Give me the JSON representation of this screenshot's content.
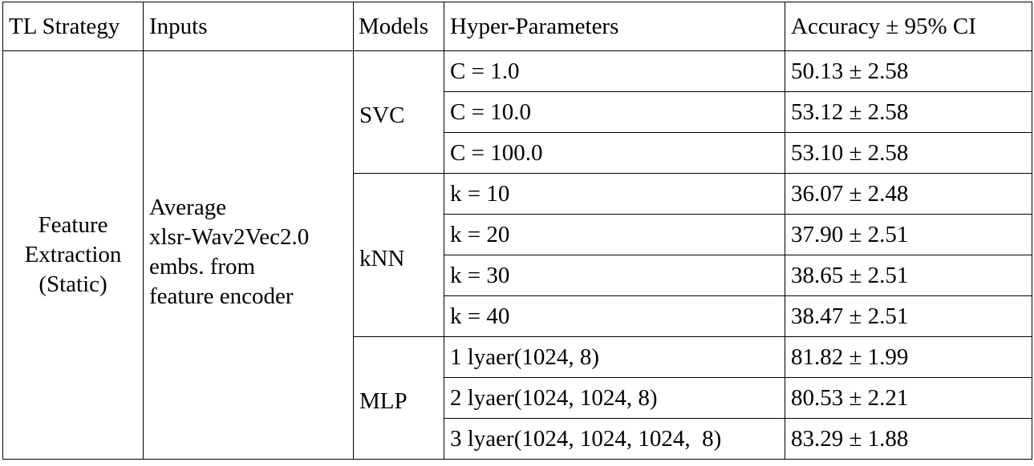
{
  "headers": [
    "TL Strategy",
    "Inputs",
    "Models",
    "Hyper-Parameters",
    "Accuracy ± 95% CI"
  ],
  "strategy_lines": [
    "Feature",
    "Extraction",
    "(Static)"
  ],
  "inputs_lines": [
    "Average",
    "xlsr-Wav2Vec2.0",
    "embs. from",
    "feature encoder"
  ],
  "groups": [
    {
      "model": "SVC",
      "rows": [
        {
          "hp": "C = 1.0",
          "acc": "50.13 ± 2.58"
        },
        {
          "hp": "C = 10.0",
          "acc": "53.12 ± 2.58"
        },
        {
          "hp": "C = 100.0",
          "acc": "53.10 ± 2.58"
        }
      ]
    },
    {
      "model": "kNN",
      "rows": [
        {
          "hp": "k = 10",
          "acc": "36.07 ± 2.48"
        },
        {
          "hp": "k = 20",
          "acc": "37.90 ± 2.51"
        },
        {
          "hp": "k = 30",
          "acc": "38.65 ± 2.51"
        },
        {
          "hp": "k = 40",
          "acc": "38.47 ± 2.51"
        }
      ]
    },
    {
      "model": "MLP",
      "rows": [
        {
          "hp": "1 lyaer(1024, 8)",
          "acc": "81.82 ± 1.99"
        },
        {
          "hp": "2 lyaer(1024, 1024, 8)",
          "acc": "80.53 ± 2.21"
        },
        {
          "hp": "3 lyaer(1024, 1024, 1024,  8)",
          "acc": "83.29 ± 1.88"
        }
      ]
    }
  ]
}
